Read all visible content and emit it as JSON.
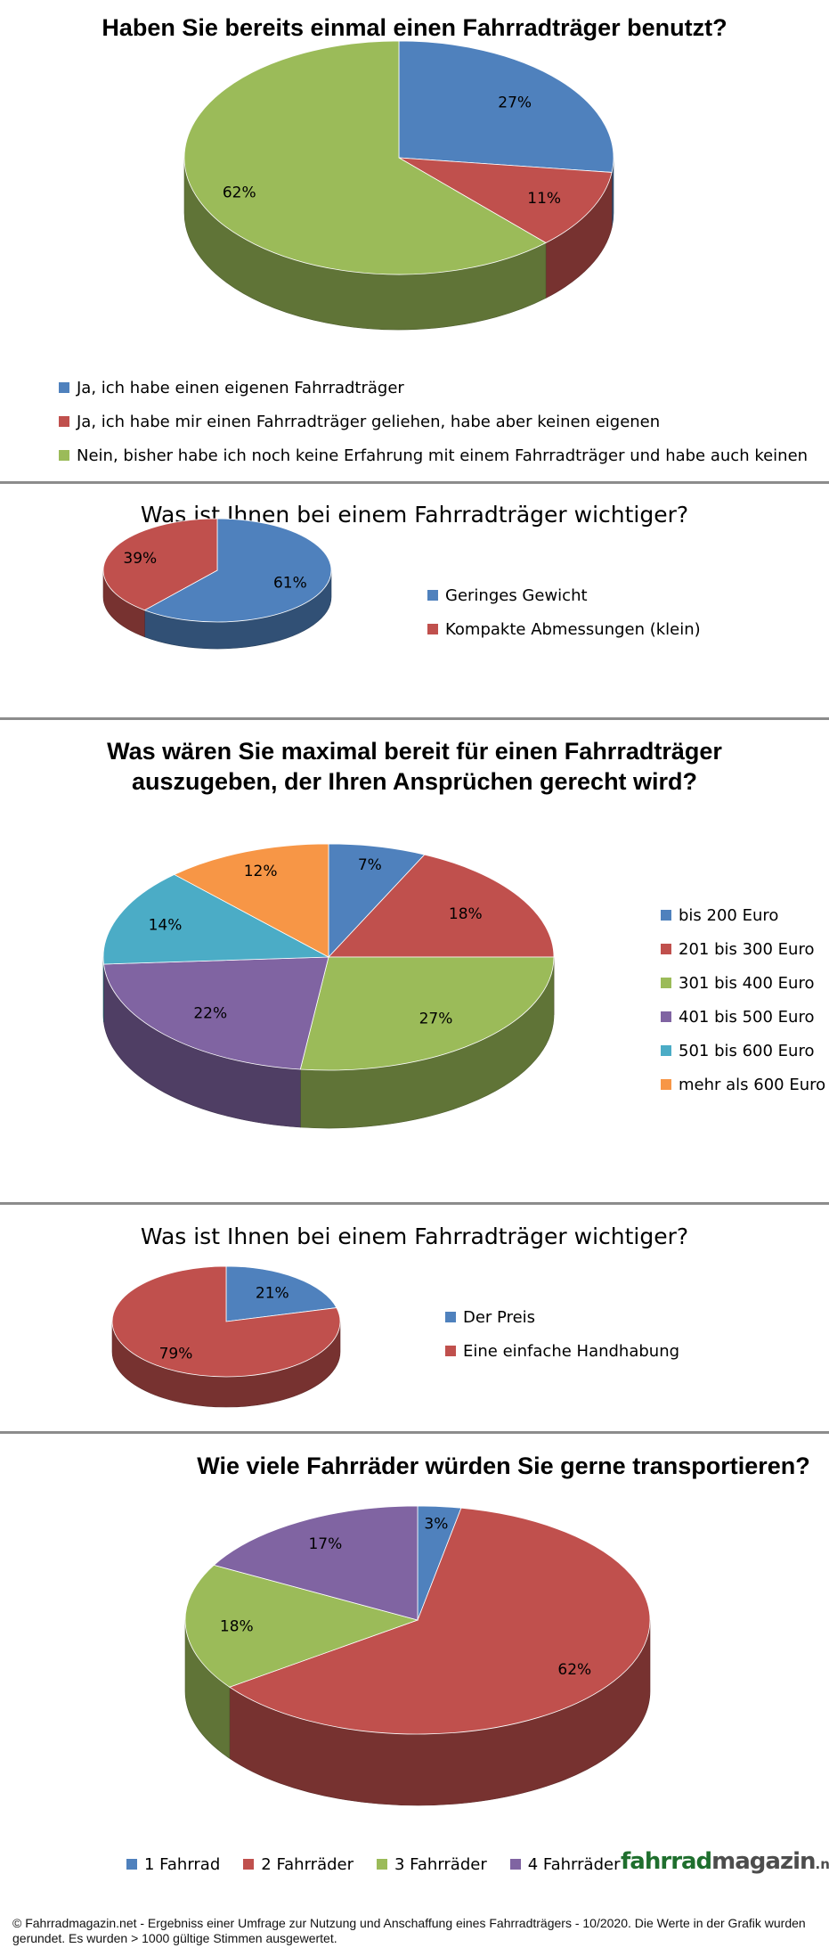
{
  "chart_data": [
    {
      "type": "pie",
      "title": "Haben Sie bereits einmal einen Fahrradträger benutzt?",
      "categories": [
        "Ja, ich habe einen eigenen Fahrradträger",
        "Ja, ich habe mir einen Fahrradträger geliehen, habe aber keinen eigenen",
        "Nein, bisher habe ich noch keine Erfahrung mit einem Fahrradträger und habe auch keinen"
      ],
      "values": [
        27,
        11,
        62
      ],
      "labels": [
        "27%",
        "11%",
        "62%"
      ],
      "colors": [
        "#4f81bd",
        "#c0504d",
        "#9bbb59"
      ],
      "legend": "bottom"
    },
    {
      "type": "pie",
      "title": "Was ist Ihnen bei einem Fahrradträger  wichtiger?",
      "categories": [
        "Geringes Gewicht",
        "Kompakte Abmessungen (klein)"
      ],
      "values": [
        61,
        39
      ],
      "labels": [
        "61%",
        "39%"
      ],
      "colors": [
        "#4f81bd",
        "#c0504d"
      ],
      "legend": "right"
    },
    {
      "type": "pie",
      "title": "Was wären Sie maximal bereit für einen Fahrradträger auszugeben, der Ihren Ansprüchen gerecht wird?",
      "categories": [
        "bis 200 Euro",
        "201 bis 300 Euro",
        "301 bis 400 Euro",
        "401 bis 500 Euro",
        "501 bis 600 Euro",
        "mehr als 600 Euro"
      ],
      "values": [
        7,
        18,
        27,
        22,
        14,
        12
      ],
      "labels": [
        "7%",
        "18%",
        "27%",
        "22%",
        "14%",
        "12%"
      ],
      "colors": [
        "#4f81bd",
        "#c0504d",
        "#9bbb59",
        "#8064a2",
        "#4bacc6",
        "#f79646"
      ],
      "legend": "right"
    },
    {
      "type": "pie",
      "title": "Was ist Ihnen bei einem Fahrradträger  wichtiger?",
      "categories": [
        "Der Preis",
        "Eine einfache Handhabung"
      ],
      "values": [
        21,
        79
      ],
      "labels": [
        "21%",
        "79%"
      ],
      "colors": [
        "#4f81bd",
        "#c0504d"
      ],
      "legend": "right"
    },
    {
      "type": "pie",
      "title": "Wie viele Fahrräder würden Sie gerne transportieren?",
      "categories": [
        "1 Fahrrad",
        "2 Fahrräder",
        "3 Fahrräder",
        "4 Fahrräder"
      ],
      "values": [
        3,
        62,
        18,
        17
      ],
      "labels": [
        "3%",
        "62%",
        "18%",
        "17%"
      ],
      "colors": [
        "#4f81bd",
        "#c0504d",
        "#9bbb59",
        "#8064a2"
      ],
      "legend": "bottom"
    }
  ],
  "logo": {
    "part1": "fahrrad",
    "part2": "magazin",
    "part3": ".net"
  },
  "footer": "© Fahrradmagazin.net - Ergebniss einer Umfrage zur Nutzung und Anschaffung eines Fahrradträgers - 10/2020. Die Werte in der Grafik wurden gerundet. Es wurden > 1000 gültige Stimmen ausgewertet."
}
